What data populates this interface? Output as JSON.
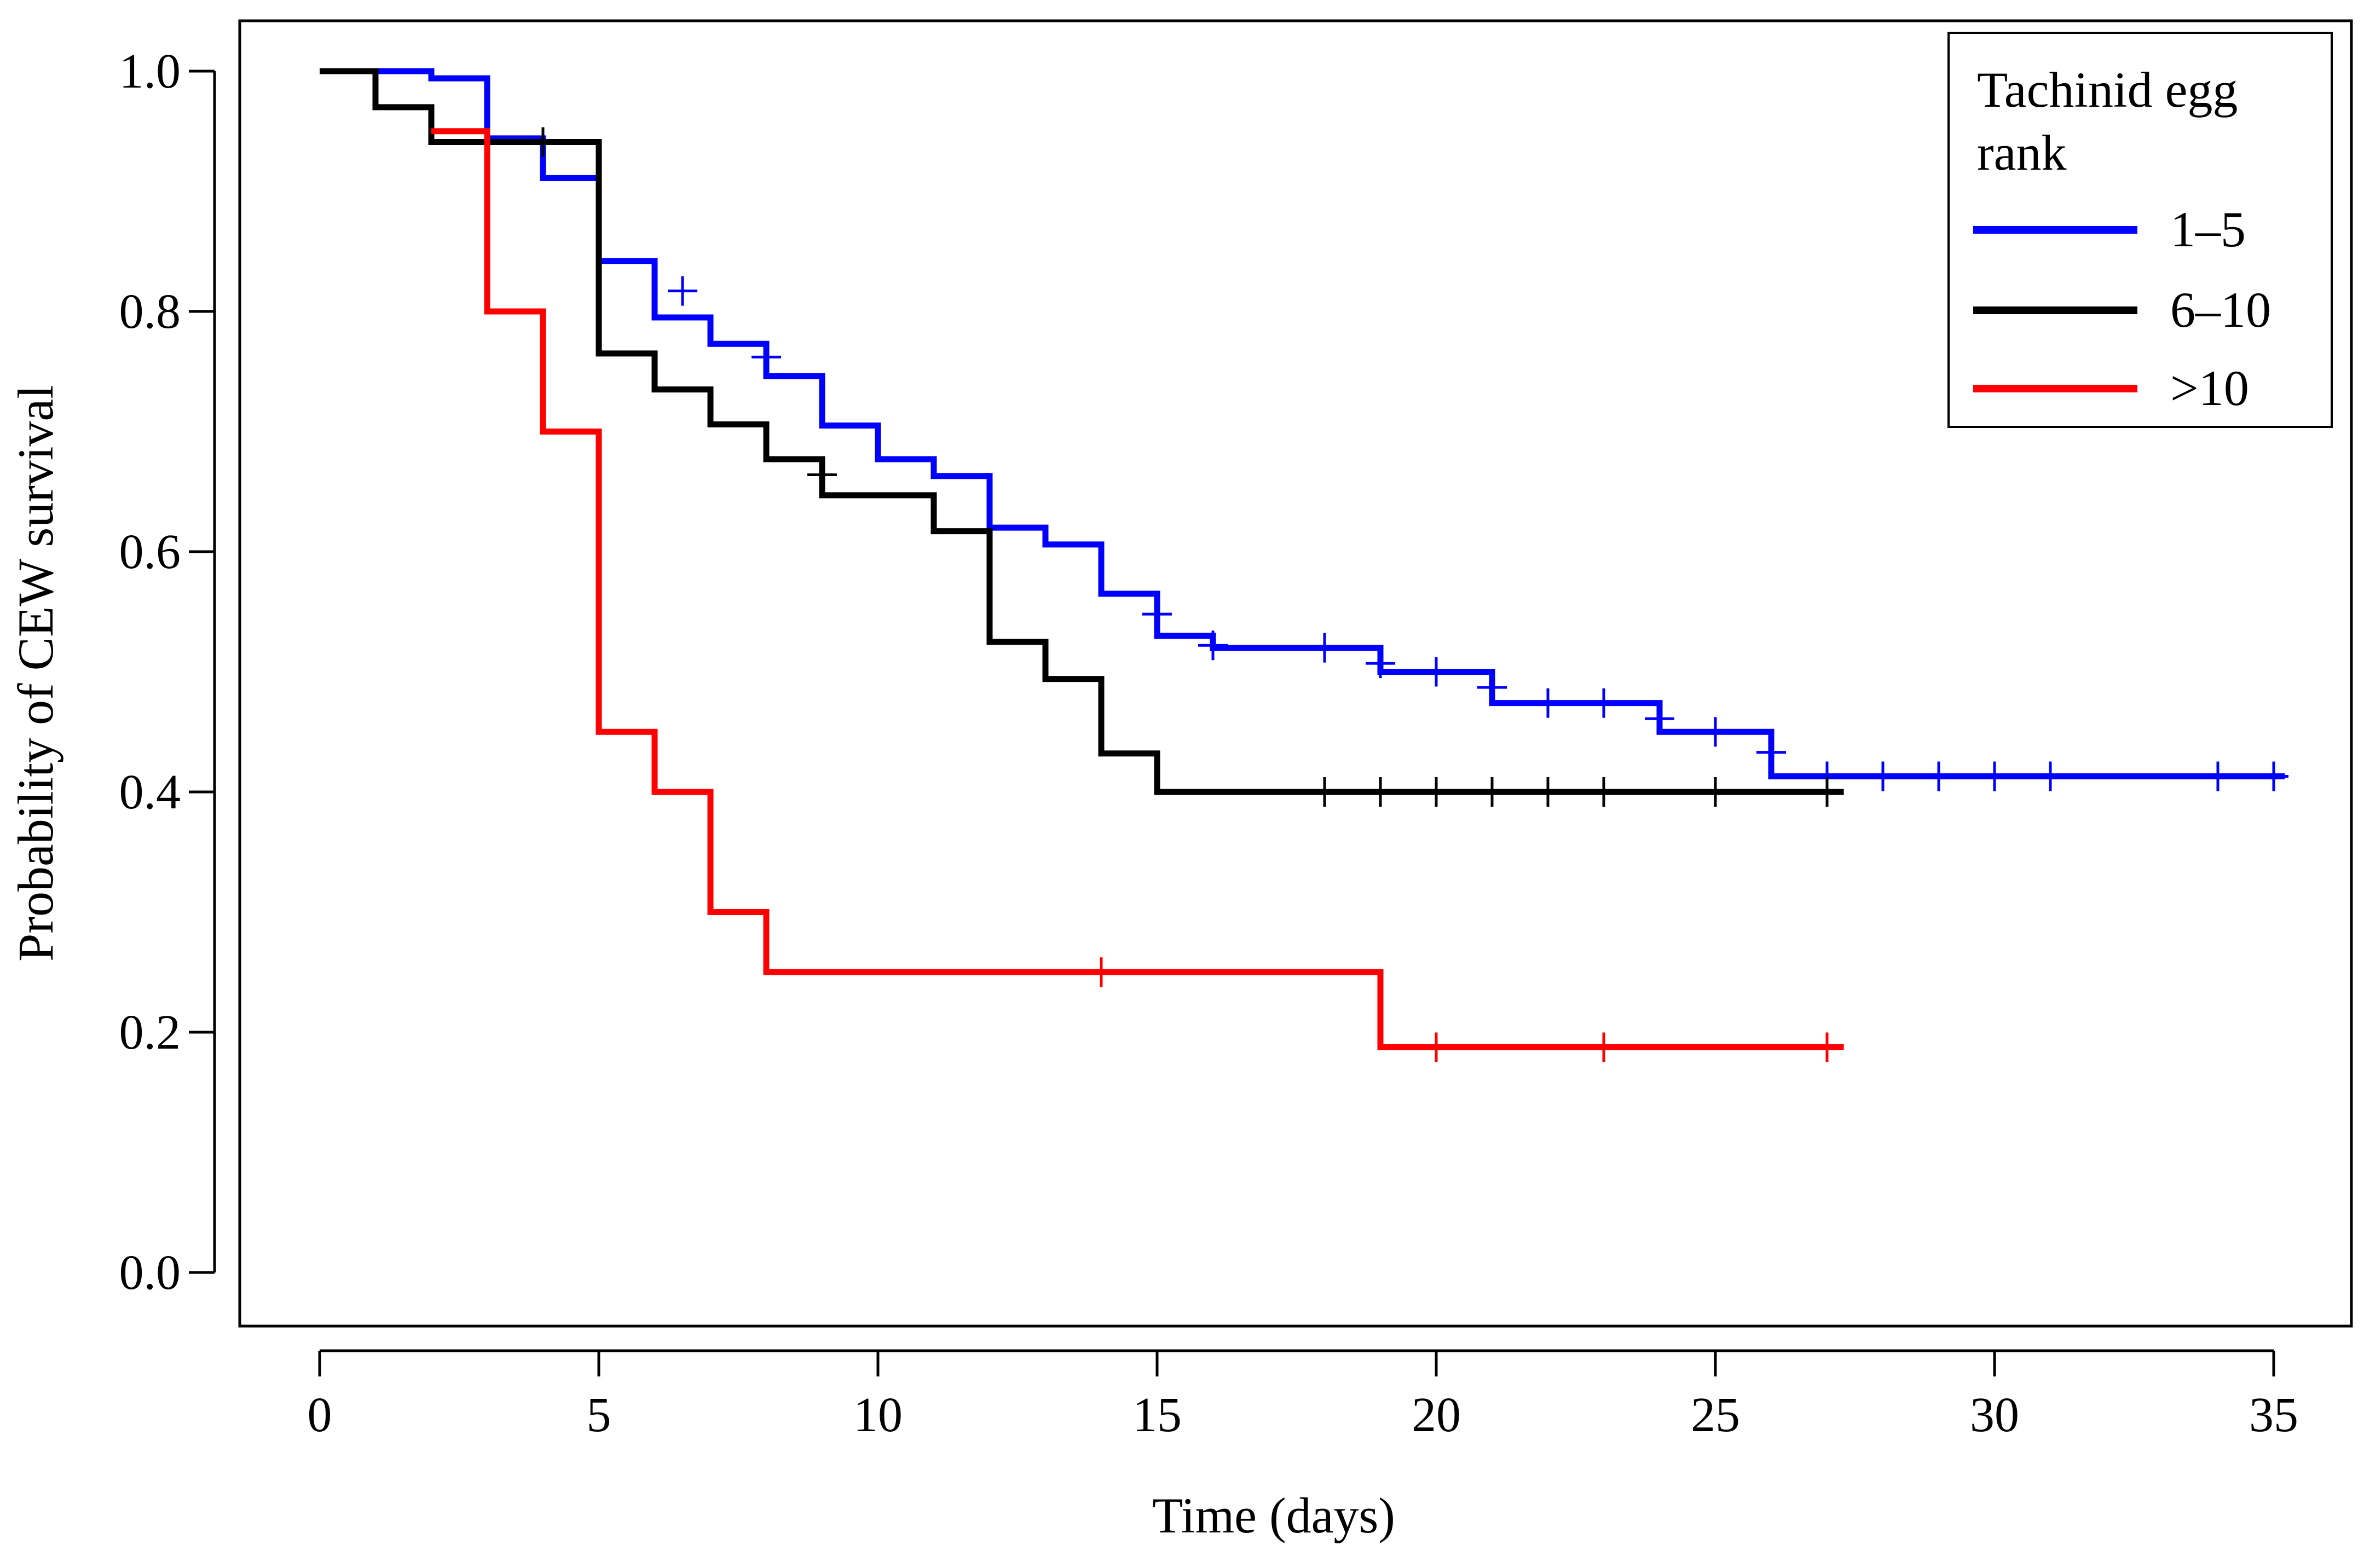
{
  "chart_data": {
    "type": "line",
    "subtype": "kaplan-meier step survival curves",
    "title": "",
    "xlabel": "Time (days)",
    "ylabel": "Probability of CEW survival",
    "xlim": [
      0,
      35
    ],
    "ylim": [
      0.0,
      1.0
    ],
    "xticks": [
      0,
      5,
      10,
      15,
      20,
      25,
      30,
      35
    ],
    "yticks": [
      0.0,
      0.2,
      0.4,
      0.6,
      0.8,
      1.0
    ],
    "xtick_labels": [
      "0",
      "5",
      "10",
      "15",
      "20",
      "25",
      "30",
      "35"
    ],
    "ytick_labels": [
      "0.0",
      "0.2",
      "0.4",
      "0.6",
      "0.8",
      "1.0"
    ],
    "grid": false,
    "legend": {
      "title_lines": [
        "Tachinid egg",
        "rank"
      ],
      "position": "top-right"
    },
    "series": [
      {
        "name": "1–5",
        "color": "#0000ff",
        "steps": [
          [
            0,
            1.0
          ],
          [
            2,
            0.994
          ],
          [
            3,
            0.944
          ],
          [
            4,
            0.911
          ],
          [
            5,
            0.842
          ],
          [
            6,
            0.795
          ],
          [
            7,
            0.773
          ],
          [
            8,
            0.746
          ],
          [
            9,
            0.705
          ],
          [
            10,
            0.677
          ],
          [
            11,
            0.663
          ],
          [
            12,
            0.62
          ],
          [
            13,
            0.606
          ],
          [
            14,
            0.565
          ],
          [
            15,
            0.53
          ],
          [
            16,
            0.52
          ],
          [
            19,
            0.5
          ],
          [
            21,
            0.474
          ],
          [
            24,
            0.45
          ],
          [
            26,
            0.413
          ]
        ],
        "end": 35.2,
        "censored": [
          [
            6.5,
            0.817
          ],
          [
            8,
            0.762
          ],
          [
            15,
            0.548
          ],
          [
            16,
            0.522
          ],
          [
            18,
            0.52
          ],
          [
            19,
            0.507
          ],
          [
            20,
            0.5
          ],
          [
            21,
            0.487
          ],
          [
            22,
            0.474
          ],
          [
            23,
            0.474
          ],
          [
            24,
            0.461
          ],
          [
            25,
            0.45
          ],
          [
            26,
            0.433
          ],
          [
            27,
            0.413
          ],
          [
            28,
            0.413
          ],
          [
            29,
            0.413
          ],
          [
            30,
            0.413
          ],
          [
            31,
            0.413
          ],
          [
            34,
            0.413
          ],
          [
            35,
            0.413
          ]
        ]
      },
      {
        "name": "6–10",
        "color": "#000000",
        "steps": [
          [
            0,
            1.0
          ],
          [
            1,
            0.97
          ],
          [
            2,
            0.941
          ],
          [
            5,
            0.765
          ],
          [
            6,
            0.735
          ],
          [
            7,
            0.706
          ],
          [
            8,
            0.677
          ],
          [
            9,
            0.647
          ],
          [
            11,
            0.617
          ],
          [
            12,
            0.525
          ],
          [
            13,
            0.494
          ],
          [
            14,
            0.432
          ],
          [
            15,
            0.4
          ]
        ],
        "end": 27.3,
        "censored": [
          [
            4,
            0.941
          ],
          [
            9,
            0.664
          ],
          [
            18,
            0.4
          ],
          [
            19,
            0.4
          ],
          [
            20,
            0.4
          ],
          [
            21,
            0.4
          ],
          [
            22,
            0.4
          ],
          [
            23,
            0.4
          ],
          [
            25,
            0.4
          ],
          [
            27,
            0.4
          ]
        ]
      },
      {
        "name": ">10",
        "color": "#ff0000",
        "steps": [
          [
            2,
            0.95
          ],
          [
            3,
            0.8
          ],
          [
            4,
            0.7
          ],
          [
            5,
            0.45
          ],
          [
            6,
            0.4
          ],
          [
            7,
            0.3
          ],
          [
            8,
            0.25
          ],
          [
            19,
            0.1875
          ]
        ],
        "end": 27.3,
        "censored": [
          [
            14,
            0.25
          ],
          [
            20,
            0.1875
          ],
          [
            23,
            0.1875
          ],
          [
            27,
            0.1875
          ]
        ]
      }
    ]
  }
}
